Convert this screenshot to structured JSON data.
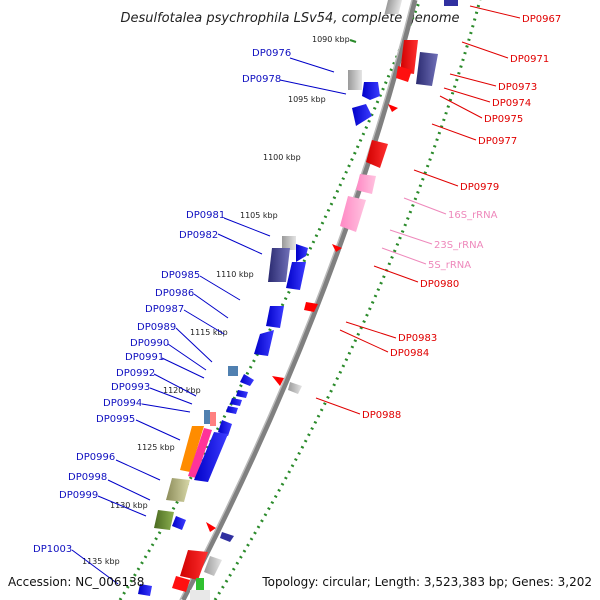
{
  "title": "Desulfotalea psychrophila LSv54, complete genome",
  "footer": {
    "accession": "Accession: NC_006138",
    "topology": "Topology: circular; Length: 3,523,383 bp; Genes: 3,202"
  },
  "scale_labels": [
    "1090 kbp",
    "1095 kbp",
    "1100 kbp",
    "1105 kbp",
    "1110 kbp",
    "1115 kbp",
    "1120 kbp",
    "1125 kbp",
    "1130 kbp",
    "1135 kbp"
  ],
  "left_genes": [
    "DP0976",
    "DP0978",
    "DP0981",
    "DP0982",
    "DP0985",
    "DP0986",
    "DP0987",
    "DP0989",
    "DP0990",
    "DP0991",
    "DP0992",
    "DP0993",
    "DP0994",
    "DP0995",
    "DP0996",
    "DP0998",
    "DP0999",
    "DP1003"
  ],
  "right_genes": [
    "DP0967",
    "DP0971",
    "DP0973",
    "DP0974",
    "DP0975",
    "DP0977",
    "DP0979",
    "DP0980",
    "DP0983",
    "DP0984",
    "DP0988"
  ],
  "rna_genes": [
    "16S_rRNA",
    "23S_rRNA",
    "5S_rRNA"
  ],
  "colors": {
    "forward_cds": "#0000ee",
    "reverse_cds": "#ee0000",
    "rrna": "#ff99cc",
    "backbone": "#808080",
    "ticks": "#2a8a2a"
  }
}
